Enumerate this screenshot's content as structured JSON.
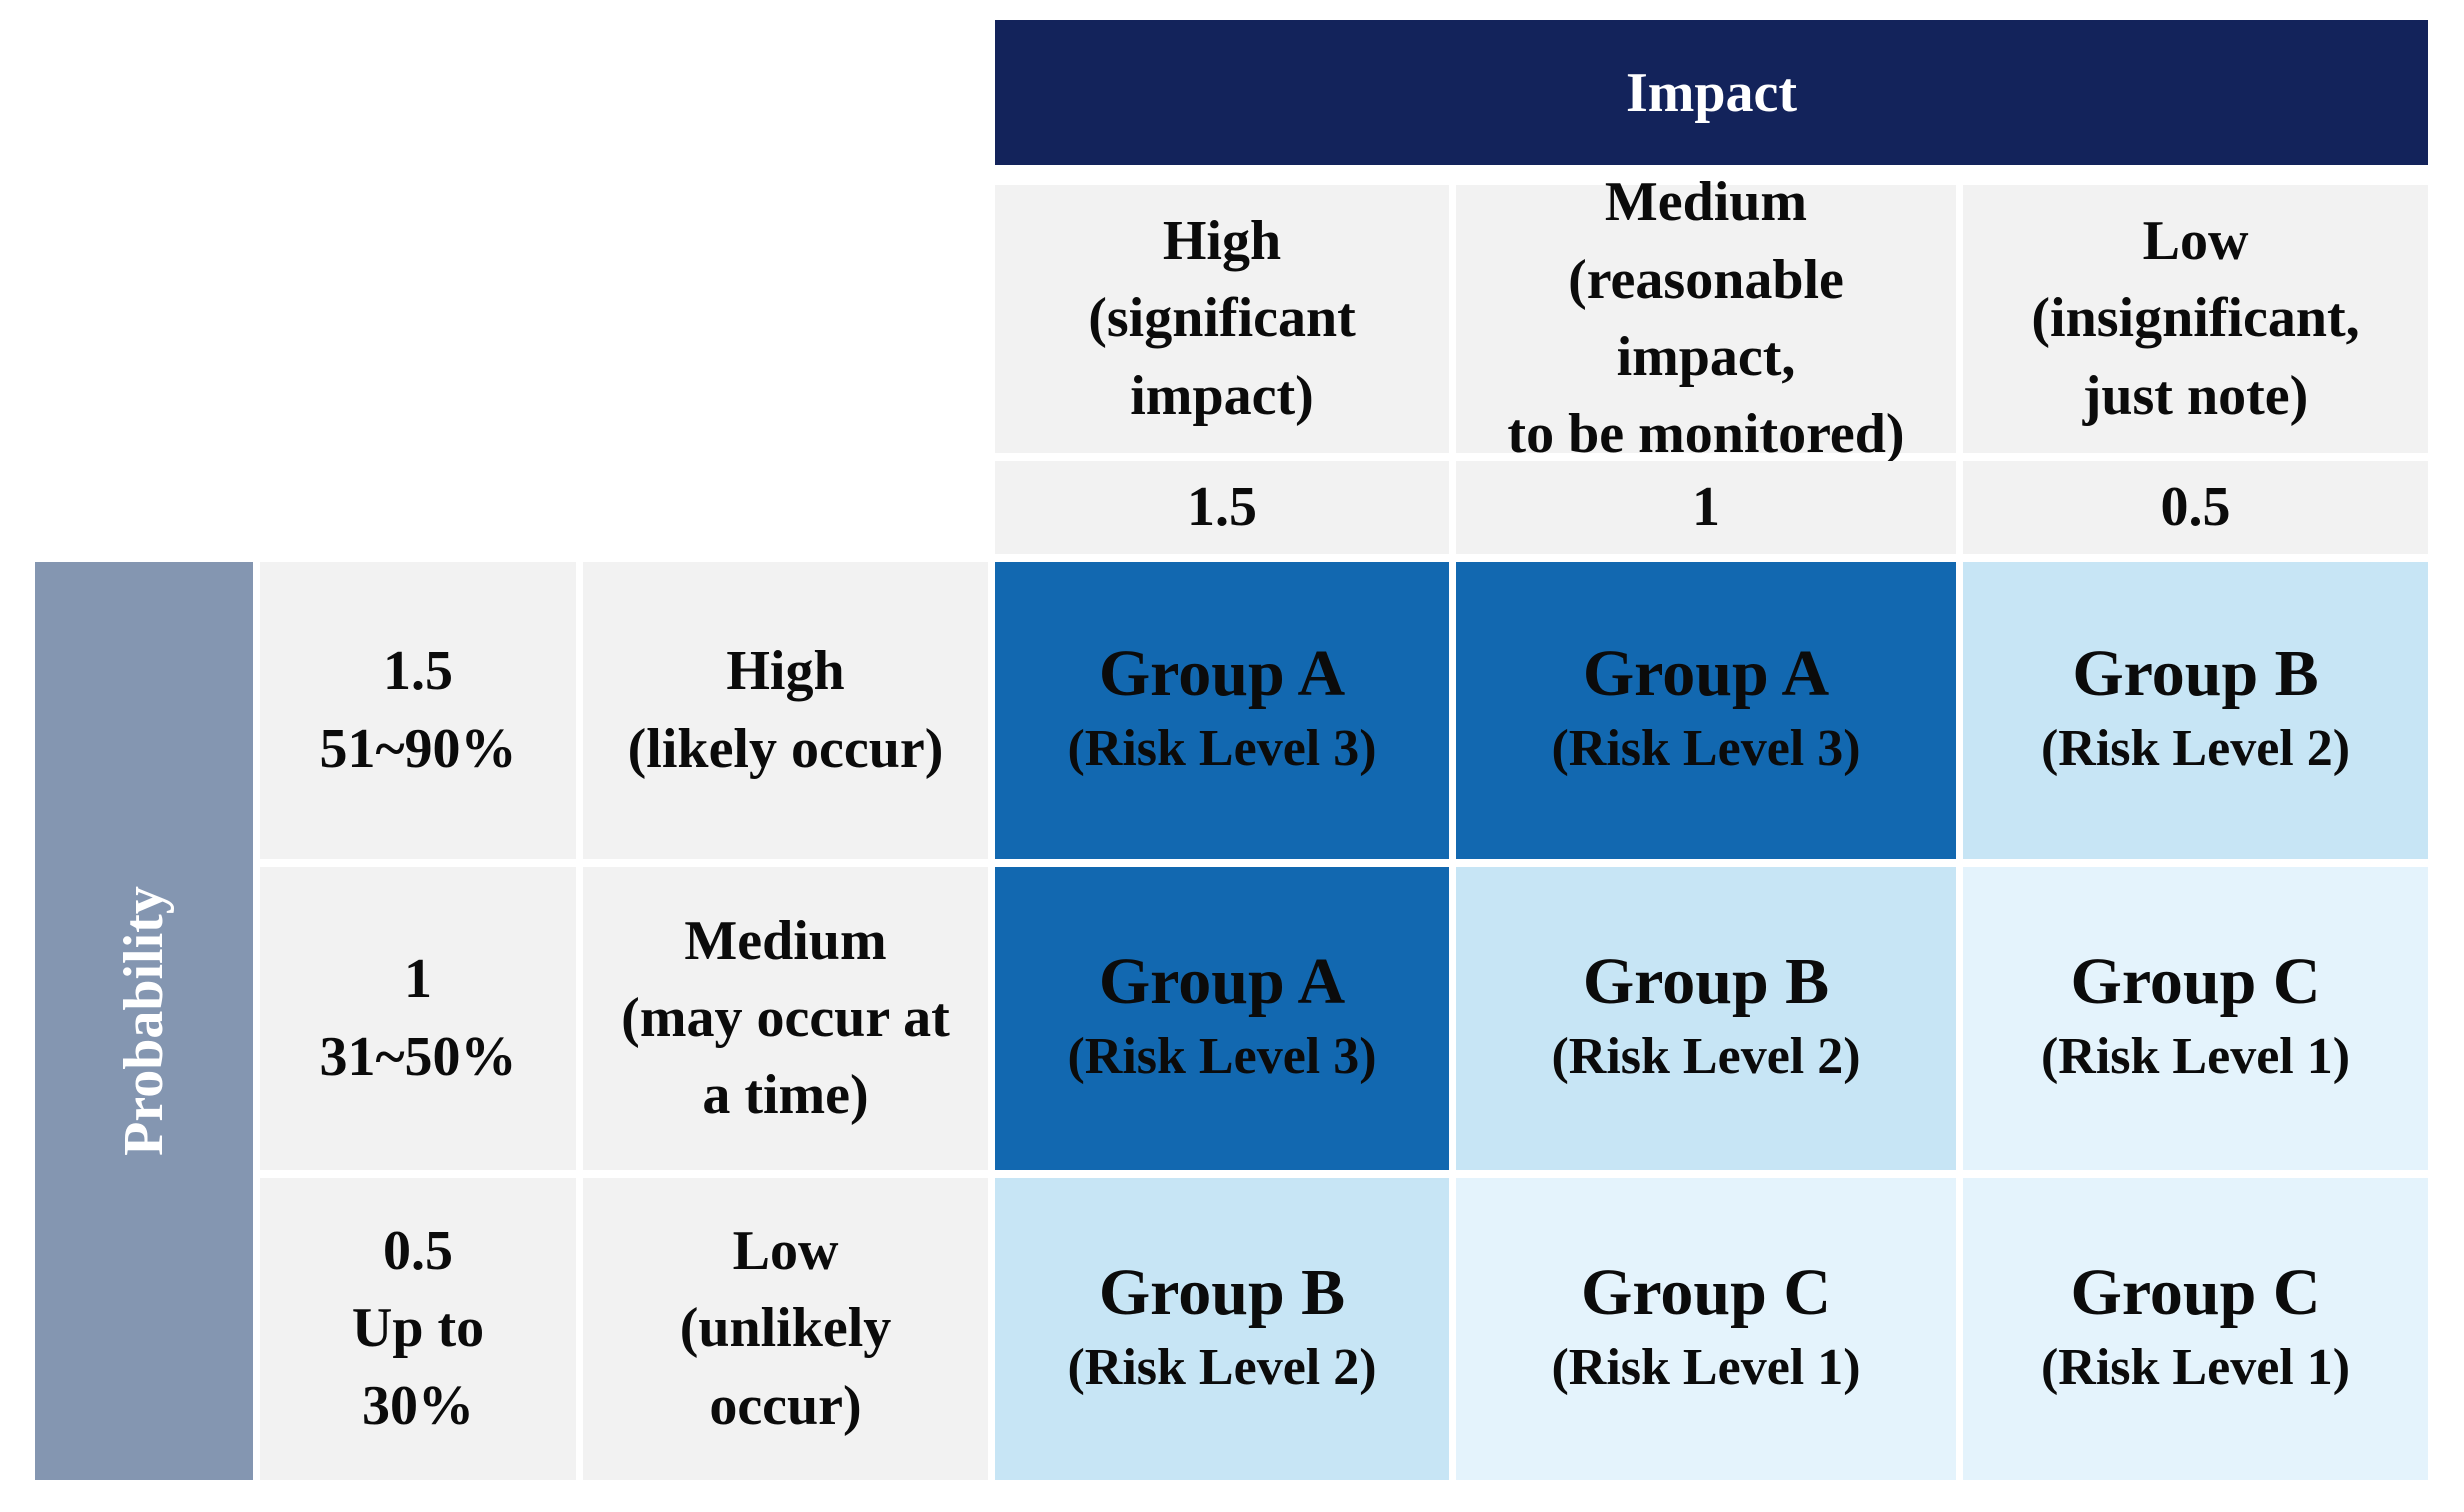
{
  "colors": {
    "navy": "#13235B",
    "slate": "#8496B1",
    "label-bg": "#F2F2F2",
    "risk-dark": "#1268B0",
    "risk-light": "#C7E5F5",
    "risk-xlight": "#E4F3FC",
    "text-dark": "#0B0B0B",
    "text-light": "#FFFFFF"
  },
  "matrix": {
    "impact_axis": {
      "title": "Impact",
      "columns": [
        {
          "label": "High\n(significant\nimpact)",
          "weight": "1.5"
        },
        {
          "label": "Medium\n(reasonable\nimpact,\nto be monitored)",
          "weight": "1"
        },
        {
          "label": "Low\n(insignificant,\njust note)",
          "weight": "0.5"
        }
      ]
    },
    "probability_axis": {
      "title": "Probability",
      "rows": [
        {
          "weight": "1.5\n51~90%",
          "label": "High\n(likely occur)"
        },
        {
          "weight": "1\n31~50%",
          "label": "Medium\n(may occur at\na time)"
        },
        {
          "weight": "0.5\nUp to\n30%",
          "label": "Low\n(unlikely\noccur)"
        }
      ]
    },
    "rows": [
      {
        "cells": [
          {
            "group": "Group A",
            "level": "(Risk Level 3)",
            "tone": "dark"
          },
          {
            "group": "Group A",
            "level": "(Risk Level 3)",
            "tone": "dark"
          },
          {
            "group": "Group B",
            "level": "(Risk Level 2)",
            "tone": "light"
          }
        ]
      },
      {
        "cells": [
          {
            "group": "Group A",
            "level": "(Risk Level 3)",
            "tone": "dark"
          },
          {
            "group": "Group B",
            "level": "(Risk Level 2)",
            "tone": "light"
          },
          {
            "group": "Group C",
            "level": "(Risk Level 1)",
            "tone": "xlight"
          }
        ]
      },
      {
        "cells": [
          {
            "group": "Group B",
            "level": "(Risk Level 2)",
            "tone": "light"
          },
          {
            "group": "Group C",
            "level": "(Risk Level 1)",
            "tone": "xlight"
          },
          {
            "group": "Group C",
            "level": "(Risk Level 1)",
            "tone": "xlight"
          }
        ]
      }
    ]
  }
}
